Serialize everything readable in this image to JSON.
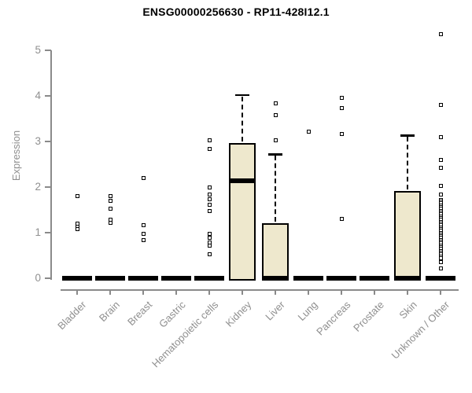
{
  "colors": {
    "background": "#FFFFFF",
    "box_fill": "#EEE8CD",
    "box_border": "#000000",
    "axis": "#8A8A8A",
    "tick_label": "#8F8F8F",
    "title": "#000000"
  },
  "chart_data": {
    "type": "boxplot",
    "title": "ENSG00000256630 - RP11-428I12.1",
    "xlabel": "",
    "ylabel": "Expression",
    "ylim": [
      0,
      5.5
    ],
    "yticks": [
      0,
      1,
      2,
      3,
      4,
      5
    ],
    "grid": false,
    "legend": false,
    "categories": [
      "Bladder",
      "Brain",
      "Breast",
      "Gastric",
      "Hematopoietic cells",
      "Kidney",
      "Liver",
      "Lung",
      "Pancreas",
      "Prostate",
      "Skin",
      "Unknown / Other"
    ],
    "boxes": [
      {
        "category": "Bladder",
        "q1": 0,
        "median": 0,
        "q3": 0,
        "whisker_low": 0,
        "whisker_high": 0,
        "outliers": [
          1.8,
          1.2,
          1.13,
          1.07
        ]
      },
      {
        "category": "Brain",
        "q1": 0,
        "median": 0,
        "q3": 0,
        "whisker_low": 0,
        "whisker_high": 0,
        "outliers": [
          1.81,
          1.69,
          1.53,
          1.29,
          1.22
        ]
      },
      {
        "category": "Breast",
        "q1": 0,
        "median": 0,
        "q3": 0,
        "whisker_low": 0,
        "whisker_high": 0,
        "outliers": [
          2.19,
          1.17,
          0.98,
          0.84
        ]
      },
      {
        "category": "Gastric",
        "q1": 0,
        "median": 0,
        "q3": 0,
        "whisker_low": 0,
        "whisker_high": 0,
        "outliers": []
      },
      {
        "category": "Hematopoietic cells",
        "q1": 0,
        "median": 0,
        "q3": 0,
        "whisker_low": 0,
        "whisker_high": 0,
        "outliers": [
          3.02,
          2.84,
          2.0,
          1.84,
          1.74,
          1.62,
          1.48,
          0.97,
          0.88,
          0.79,
          0.71,
          0.52
        ]
      },
      {
        "category": "Kidney",
        "q1": 0,
        "median": 2.14,
        "q3": 2.97,
        "whisker_low": 0,
        "whisker_high": 4.02,
        "outliers": []
      },
      {
        "category": "Liver",
        "q1": 0,
        "median": 0,
        "q3": 1.2,
        "whisker_low": 0,
        "whisker_high": 2.72,
        "outliers": [
          3.84,
          3.57,
          3.03
        ]
      },
      {
        "category": "Lung",
        "q1": 0,
        "median": 0,
        "q3": 0,
        "whisker_low": 0,
        "whisker_high": 0,
        "outliers": [
          3.21
        ]
      },
      {
        "category": "Pancreas",
        "q1": 0,
        "median": 0,
        "q3": 0,
        "whisker_low": 0,
        "whisker_high": 0,
        "outliers": [
          3.95,
          3.74,
          3.17,
          1.31
        ]
      },
      {
        "category": "Prostate",
        "q1": 0,
        "median": 0,
        "q3": 0,
        "whisker_low": 0,
        "whisker_high": 0,
        "outliers": []
      },
      {
        "category": "Skin",
        "q1": 0,
        "median": 0,
        "q3": 1.91,
        "whisker_low": 0,
        "whisker_high": 3.13,
        "outliers": []
      },
      {
        "category": "Unknown / Other",
        "q1": 0,
        "median": 0,
        "q3": 0,
        "whisker_low": 0,
        "whisker_high": 0,
        "outliers": [
          5.36,
          3.81,
          3.1,
          2.6,
          2.43,
          2.02,
          1.83,
          1.72,
          1.68,
          1.64,
          1.6,
          1.56,
          1.52,
          1.48,
          1.44,
          1.4,
          1.36,
          1.32,
          1.28,
          1.24,
          1.2,
          1.16,
          1.12,
          1.08,
          1.04,
          1.0,
          0.96,
          0.92,
          0.88,
          0.84,
          0.8,
          0.76,
          0.72,
          0.68,
          0.64,
          0.6,
          0.56,
          0.52,
          0.48,
          0.44,
          0.36,
          0.21
        ]
      }
    ]
  }
}
